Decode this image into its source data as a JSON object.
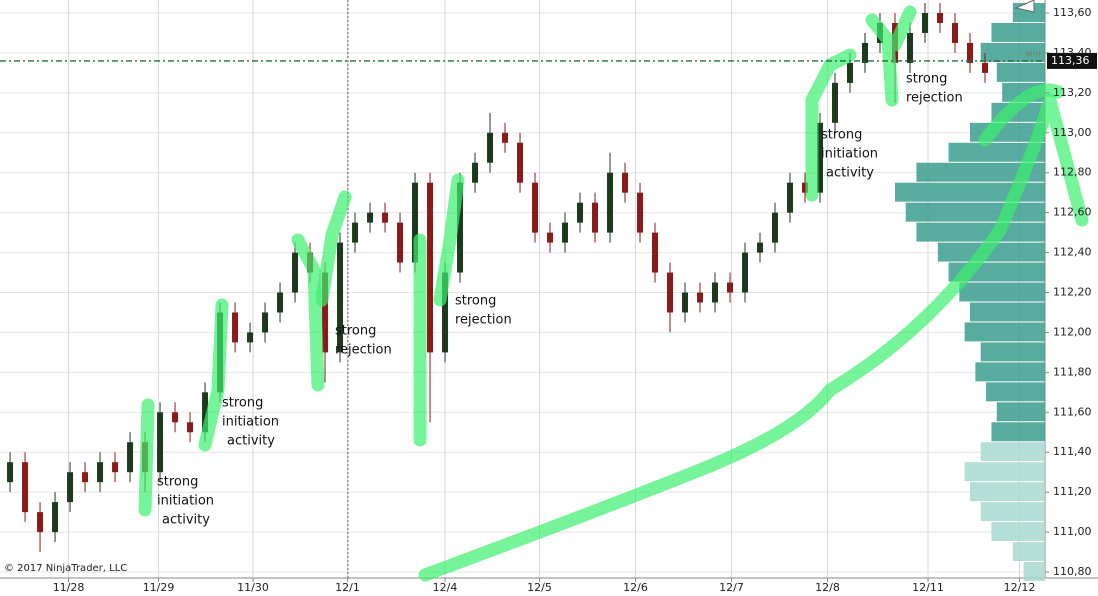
{
  "chart_data": {
    "type": "candlestick",
    "open": [
      111.25,
      111.35,
      111.1,
      111.0,
      111.15,
      111.3,
      111.25,
      111.35,
      111.3,
      111.45,
      111.3,
      111.6,
      111.55,
      111.5,
      111.7,
      112.1,
      111.95,
      112.0,
      112.1,
      112.2,
      112.4,
      112.3,
      111.9,
      112.45,
      112.55,
      112.6,
      112.55,
      112.35,
      112.75,
      111.9,
      112.3,
      112.75,
      112.85,
      113.0,
      112.95,
      112.75,
      112.5,
      112.45,
      112.55,
      112.65,
      112.5,
      112.8,
      112.7,
      112.5,
      112.3,
      112.1,
      112.2,
      112.15,
      112.25,
      112.2,
      112.4,
      112.45,
      112.6,
      112.75,
      112.7,
      113.05,
      113.25,
      113.35,
      113.45,
      113.55,
      113.35,
      113.5,
      113.6,
      113.55,
      113.45,
      113.35
    ],
    "high": [
      111.4,
      111.4,
      111.15,
      111.2,
      111.35,
      111.35,
      111.4,
      111.4,
      111.5,
      111.5,
      111.65,
      111.65,
      111.6,
      111.75,
      112.15,
      112.15,
      112.05,
      112.15,
      112.25,
      112.45,
      112.45,
      112.35,
      112.5,
      112.6,
      112.65,
      112.65,
      112.6,
      112.8,
      112.8,
      112.35,
      112.8,
      112.9,
      113.1,
      113.05,
      113.0,
      112.8,
      112.55,
      112.6,
      112.7,
      112.7,
      112.9,
      112.85,
      112.75,
      112.55,
      112.35,
      112.25,
      112.25,
      112.3,
      112.3,
      112.45,
      112.5,
      112.65,
      112.8,
      112.8,
      113.1,
      113.3,
      113.4,
      113.5,
      113.6,
      113.6,
      113.55,
      113.65,
      113.65,
      113.6,
      113.5,
      113.4
    ],
    "low": [
      111.2,
      111.05,
      110.9,
      110.95,
      111.1,
      111.2,
      111.2,
      111.25,
      111.25,
      111.2,
      111.25,
      111.5,
      111.45,
      111.45,
      111.65,
      111.9,
      111.9,
      111.95,
      112.05,
      112.15,
      112.25,
      111.75,
      111.85,
      112.4,
      112.5,
      112.5,
      112.3,
      112.3,
      111.55,
      111.85,
      112.25,
      112.7,
      112.8,
      112.9,
      112.7,
      112.45,
      112.4,
      112.4,
      112.5,
      112.45,
      112.45,
      112.65,
      112.45,
      112.25,
      112.0,
      112.05,
      112.1,
      112.1,
      112.15,
      112.15,
      112.35,
      112.4,
      112.55,
      112.65,
      112.65,
      113.0,
      113.2,
      113.3,
      113.4,
      113.15,
      113.3,
      113.45,
      113.5,
      113.4,
      113.3,
      113.25
    ],
    "close": [
      111.35,
      111.1,
      111.0,
      111.15,
      111.3,
      111.25,
      111.35,
      111.3,
      111.45,
      111.3,
      111.6,
      111.55,
      111.5,
      111.7,
      112.1,
      111.95,
      112.0,
      112.1,
      112.2,
      112.4,
      112.3,
      111.9,
      112.45,
      112.55,
      112.6,
      112.55,
      112.35,
      112.75,
      111.9,
      112.3,
      112.75,
      112.85,
      113.0,
      112.95,
      112.75,
      112.5,
      112.45,
      112.55,
      112.65,
      112.5,
      112.8,
      112.7,
      112.5,
      112.3,
      112.1,
      112.2,
      112.15,
      112.25,
      112.2,
      112.4,
      112.45,
      112.6,
      112.75,
      112.7,
      113.05,
      113.25,
      113.35,
      113.45,
      113.55,
      113.35,
      113.5,
      113.6,
      113.55,
      113.45,
      113.35,
      113.3
    ],
    "up_color": "#1e3a1e",
    "down_color": "#8b1a1a",
    "xlim": [
      -0.67,
      69
    ],
    "xticks": [
      {
        "value": 3.9,
        "label": "11/28"
      },
      {
        "value": 9.9,
        "label": "11/29"
      },
      {
        "value": 16.2,
        "label": "11/30"
      },
      {
        "value": 22.5,
        "label": "12/1"
      },
      {
        "value": 29,
        "label": "12/4"
      },
      {
        "value": 35.3,
        "label": "12/5"
      },
      {
        "value": 41.7,
        "label": "12/6"
      },
      {
        "value": 48.1,
        "label": "12/7"
      },
      {
        "value": 54.5,
        "label": "12/8"
      },
      {
        "value": 61.2,
        "label": "12/11"
      },
      {
        "value": 67.3,
        "label": "12/12"
      }
    ],
    "ylim": [
      110.8,
      113.6
    ],
    "yticks": [
      {
        "value": 110.8,
        "label": "110,80"
      },
      {
        "value": 111.0,
        "label": "111,00"
      },
      {
        "value": 111.2,
        "label": "111,20"
      },
      {
        "value": 111.4,
        "label": "111,40"
      },
      {
        "value": 111.6,
        "label": "111,60"
      },
      {
        "value": 111.8,
        "label": "111,80"
      },
      {
        "value": 112.0,
        "label": "112,00"
      },
      {
        "value": 112.2,
        "label": "112,20"
      },
      {
        "value": 112.4,
        "label": "112,40"
      },
      {
        "value": 112.6,
        "label": "112,60"
      },
      {
        "value": 112.8,
        "label": "112,80"
      },
      {
        "value": 113.0,
        "label": "113,00"
      },
      {
        "value": 113.2,
        "label": "113,20"
      },
      {
        "value": 113.4,
        "label": "113,40"
      },
      {
        "value": 113.6,
        "label": "113,60"
      }
    ],
    "grid": true,
    "last_price": 113.36,
    "last_price_label": "113,36",
    "last_price_tag": "win",
    "last_price_color": "#1f6b3a",
    "volume_profile": {
      "prices": [
        110.8,
        110.9,
        111.0,
        111.1,
        111.2,
        111.3,
        111.4,
        111.5,
        111.6,
        111.7,
        111.8,
        111.9,
        112.0,
        112.1,
        112.2,
        112.3,
        112.4,
        112.5,
        112.6,
        112.7,
        112.8,
        112.9,
        113.0,
        113.1,
        113.2,
        113.3,
        113.4,
        113.5,
        113.6
      ],
      "volumes": [
        20,
        30,
        50,
        60,
        70,
        75,
        60,
        50,
        45,
        55,
        65,
        60,
        75,
        70,
        80,
        90,
        100,
        120,
        130,
        140,
        120,
        90,
        70,
        50,
        40,
        45,
        60,
        50,
        30
      ],
      "value_area_low": 111.5,
      "color": "#3a9e8e",
      "light_color": "#a8d8cf"
    },
    "annotations": [
      [
        "strong",
        "initiation",
        "activity"
      ],
      [
        "strong",
        "initiation",
        "activity"
      ],
      [
        "strong",
        "rejection"
      ],
      [
        "strong",
        "rejection"
      ],
      [
        "strong",
        "initiation",
        "activity"
      ],
      [
        "strong",
        "rejection"
      ]
    ],
    "copyright": "© 2017 NinjaTrader, LLC"
  }
}
